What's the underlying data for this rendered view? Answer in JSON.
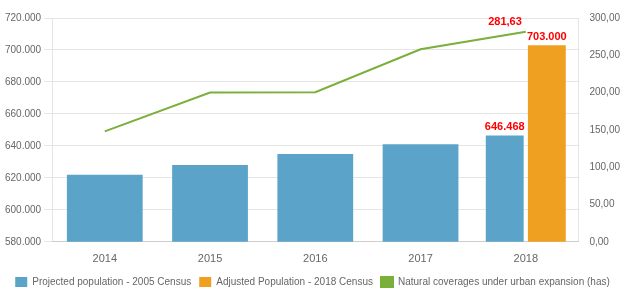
{
  "chart_data": {
    "type": "bar",
    "categories": [
      "2014",
      "2015",
      "2016",
      "2017",
      "2018"
    ],
    "series": [
      {
        "name": "Projected population - 2005 Census",
        "color": "#5BA3C9",
        "values": [
          622000,
          628000,
          635000,
          641000,
          646468
        ]
      },
      {
        "name": "Adjusted Population - 2018 Census",
        "color": "#F0A020",
        "values": [
          null,
          null,
          null,
          null,
          703000
        ]
      },
      {
        "name": "Natural coverages under urban expansion (has)",
        "type": "line",
        "axis": "y2",
        "color": "#7AAF3A",
        "values": [
          148.0,
          200.0,
          200.5,
          258.0,
          281.63
        ]
      }
    ],
    "ylim": [
      580000,
      720000
    ],
    "yticks": [
      {
        "value": 580000,
        "label": "580.000"
      },
      {
        "value": 600000,
        "label": "600.000"
      },
      {
        "value": 620000,
        "label": "620.000"
      },
      {
        "value": 640000,
        "label": "640.000"
      },
      {
        "value": 660000,
        "label": "660.000"
      },
      {
        "value": 680000,
        "label": "680.000"
      },
      {
        "value": 700000,
        "label": "700.000"
      },
      {
        "value": 720000,
        "label": "720.000"
      }
    ],
    "y2lim": [
      0,
      300
    ],
    "y2ticks": [
      {
        "value": 0,
        "label": "0,00"
      },
      {
        "value": 50,
        "label": "50,00"
      },
      {
        "value": 100,
        "label": "100,00"
      },
      {
        "value": 150,
        "label": "150,00"
      },
      {
        "value": 200,
        "label": "200,00"
      },
      {
        "value": 250,
        "label": "250,00"
      },
      {
        "value": 300,
        "label": "300,00"
      }
    ],
    "grid": true,
    "legend": "bottom",
    "annotations": [
      {
        "text": "646.468",
        "series": "Projected population - 2005 Census",
        "x": "2018",
        "y": 646468,
        "color": "#FF0000"
      },
      {
        "text": "703.000",
        "series": "Adjusted Population - 2018 Census",
        "x": "2018",
        "y": 703000,
        "color": "#FF0000"
      },
      {
        "text": "281,63",
        "series": "Natural coverages under urban expansion (has)",
        "x": "2018",
        "y": 281.63,
        "color": "#FF0000"
      }
    ]
  }
}
